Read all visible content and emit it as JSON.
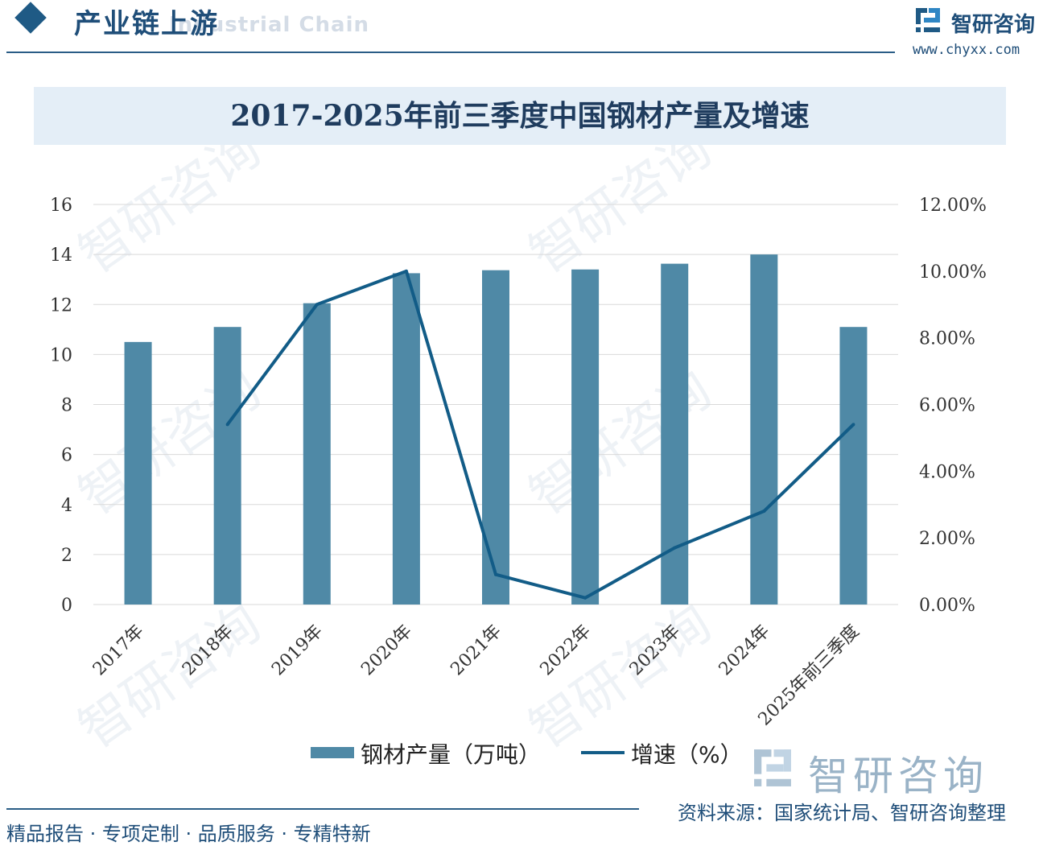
{
  "header": {
    "section_title": "产业链上游",
    "section_subtitle": "Industrial Chain",
    "brand_name": "智研咨询",
    "brand_url": "www.chyxx.com"
  },
  "chart_title": "2017-2025年前三季度中国钢材产量及增速",
  "chart_data": {
    "type": "bar+line",
    "categories": [
      "2017年",
      "2018年",
      "2019年",
      "2020年",
      "2021年",
      "2022年",
      "2023年",
      "2024年",
      "2025年前三季度"
    ],
    "series": [
      {
        "name": "钢材产量（万吨）",
        "type": "bar",
        "axis": "left",
        "color": "#4f89a6",
        "values": [
          10.5,
          11.1,
          12.05,
          13.25,
          13.37,
          13.4,
          13.63,
          14.0,
          11.1
        ]
      },
      {
        "name": "增速（%）",
        "type": "line",
        "axis": "right",
        "color": "#125c87",
        "values": [
          null,
          5.4,
          9.0,
          10.0,
          0.9,
          0.2,
          1.7,
          2.8,
          5.4
        ]
      }
    ],
    "y_left": {
      "min": 0,
      "max": 16,
      "ticks": [
        "0",
        "2",
        "4",
        "6",
        "8",
        "10",
        "12",
        "14",
        "16"
      ]
    },
    "y_right": {
      "min": 0,
      "max": 12,
      "ticks": [
        "0.00%",
        "2.00%",
        "4.00%",
        "6.00%",
        "8.00%",
        "10.00%",
        "12.00%"
      ]
    },
    "grid": true,
    "legend_position": "bottom"
  },
  "legend": {
    "bar_label": "钢材产量（万吨）",
    "line_label": "增速（%）"
  },
  "watermark": "智研咨询",
  "footer": {
    "tagline": "精品报告 · 专项定制 · 品质服务 · 专精特新",
    "source": "资料来源：国家统计局、智研咨询整理"
  }
}
